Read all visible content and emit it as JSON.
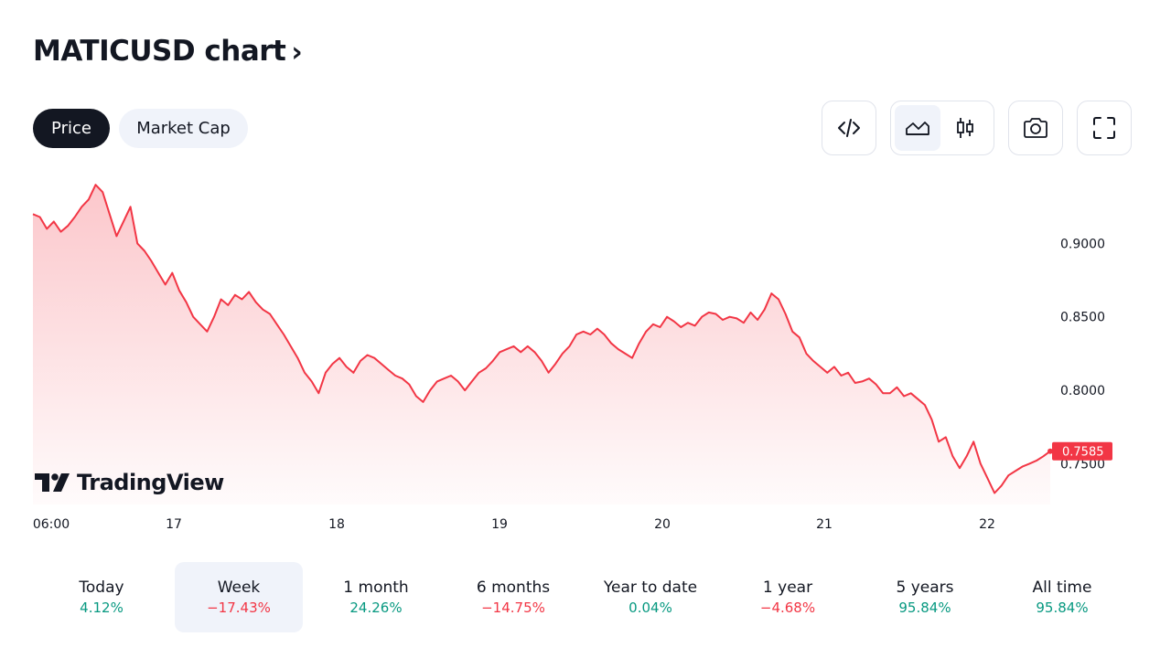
{
  "title": "MATICUSD chart",
  "tabs": [
    {
      "label": "Price",
      "active": true
    },
    {
      "label": "Market Cap",
      "active": false
    }
  ],
  "toolbar": [
    {
      "icon": "embed-code-icon"
    },
    {
      "icon": "area-chart-icon",
      "active": true
    },
    {
      "icon": "candlestick-icon"
    },
    {
      "icon": "camera-icon"
    },
    {
      "icon": "fullscreen-icon"
    }
  ],
  "watermark": "TradingView",
  "colors": {
    "line": "#f23645",
    "positive": "#089981",
    "negative": "#f23645",
    "dark": "#131722"
  },
  "chart_data": {
    "type": "area",
    "series": [
      {
        "values": [
          0.92,
          0.918,
          0.91,
          0.915,
          0.908,
          0.912,
          0.918,
          0.925,
          0.93,
          0.94,
          0.935,
          0.92,
          0.905,
          0.915,
          0.925,
          0.9,
          0.895,
          0.888,
          0.88,
          0.872,
          0.88,
          0.868,
          0.86,
          0.85,
          0.845,
          0.84,
          0.85,
          0.862,
          0.858,
          0.865,
          0.862,
          0.867,
          0.86,
          0.855,
          0.852,
          0.845,
          0.838,
          0.83,
          0.822,
          0.812,
          0.806,
          0.798,
          0.812,
          0.818,
          0.822,
          0.816,
          0.812,
          0.82,
          0.824,
          0.822,
          0.818,
          0.814,
          0.81,
          0.808,
          0.804,
          0.796,
          0.792,
          0.8,
          0.806,
          0.808,
          0.81,
          0.806,
          0.8,
          0.806,
          0.812,
          0.815,
          0.82,
          0.826,
          0.828,
          0.83,
          0.826,
          0.83,
          0.826,
          0.82,
          0.812,
          0.818,
          0.825,
          0.83,
          0.838,
          0.84,
          0.838,
          0.842,
          0.838,
          0.832,
          0.828,
          0.825,
          0.822,
          0.832,
          0.84,
          0.845,
          0.843,
          0.85,
          0.847,
          0.843,
          0.846,
          0.844,
          0.85,
          0.853,
          0.852,
          0.848,
          0.85,
          0.849,
          0.846,
          0.853,
          0.848,
          0.855,
          0.866,
          0.862,
          0.852,
          0.84,
          0.836,
          0.825,
          0.82,
          0.816,
          0.812,
          0.816,
          0.81,
          0.812,
          0.805,
          0.806,
          0.808,
          0.804,
          0.798,
          0.798,
          0.802,
          0.796,
          0.798,
          0.794,
          0.79,
          0.78,
          0.765,
          0.768,
          0.755,
          0.747,
          0.755,
          0.765,
          0.75,
          0.74,
          0.73,
          0.735,
          0.742,
          0.745,
          0.748,
          0.75,
          0.752,
          0.755,
          0.7585
        ]
      }
    ],
    "x_tick_labels": [
      "06:00",
      "17",
      "18",
      "19",
      "20",
      "21",
      "22"
    ],
    "y_tick_labels": [
      "0.9000",
      "0.8500",
      "0.8000",
      "0.7500"
    ],
    "ylim": [
      0.7222,
      0.9476
    ],
    "last_value_label": "0.7585",
    "grid": false
  },
  "periods": [
    {
      "label": "Today",
      "value": "4.12%",
      "trend": "pos",
      "active": false
    },
    {
      "label": "Week",
      "value": "−17.43%",
      "trend": "neg",
      "active": true
    },
    {
      "label": "1 month",
      "value": "24.26%",
      "trend": "pos",
      "active": false
    },
    {
      "label": "6 months",
      "value": "−14.75%",
      "trend": "neg",
      "active": false
    },
    {
      "label": "Year to date",
      "value": "0.04%",
      "trend": "pos",
      "active": false
    },
    {
      "label": "1 year",
      "value": "−4.68%",
      "trend": "neg",
      "active": false
    },
    {
      "label": "5 years",
      "value": "95.84%",
      "trend": "pos",
      "active": false
    },
    {
      "label": "All time",
      "value": "95.84%",
      "trend": "pos",
      "active": false
    }
  ]
}
